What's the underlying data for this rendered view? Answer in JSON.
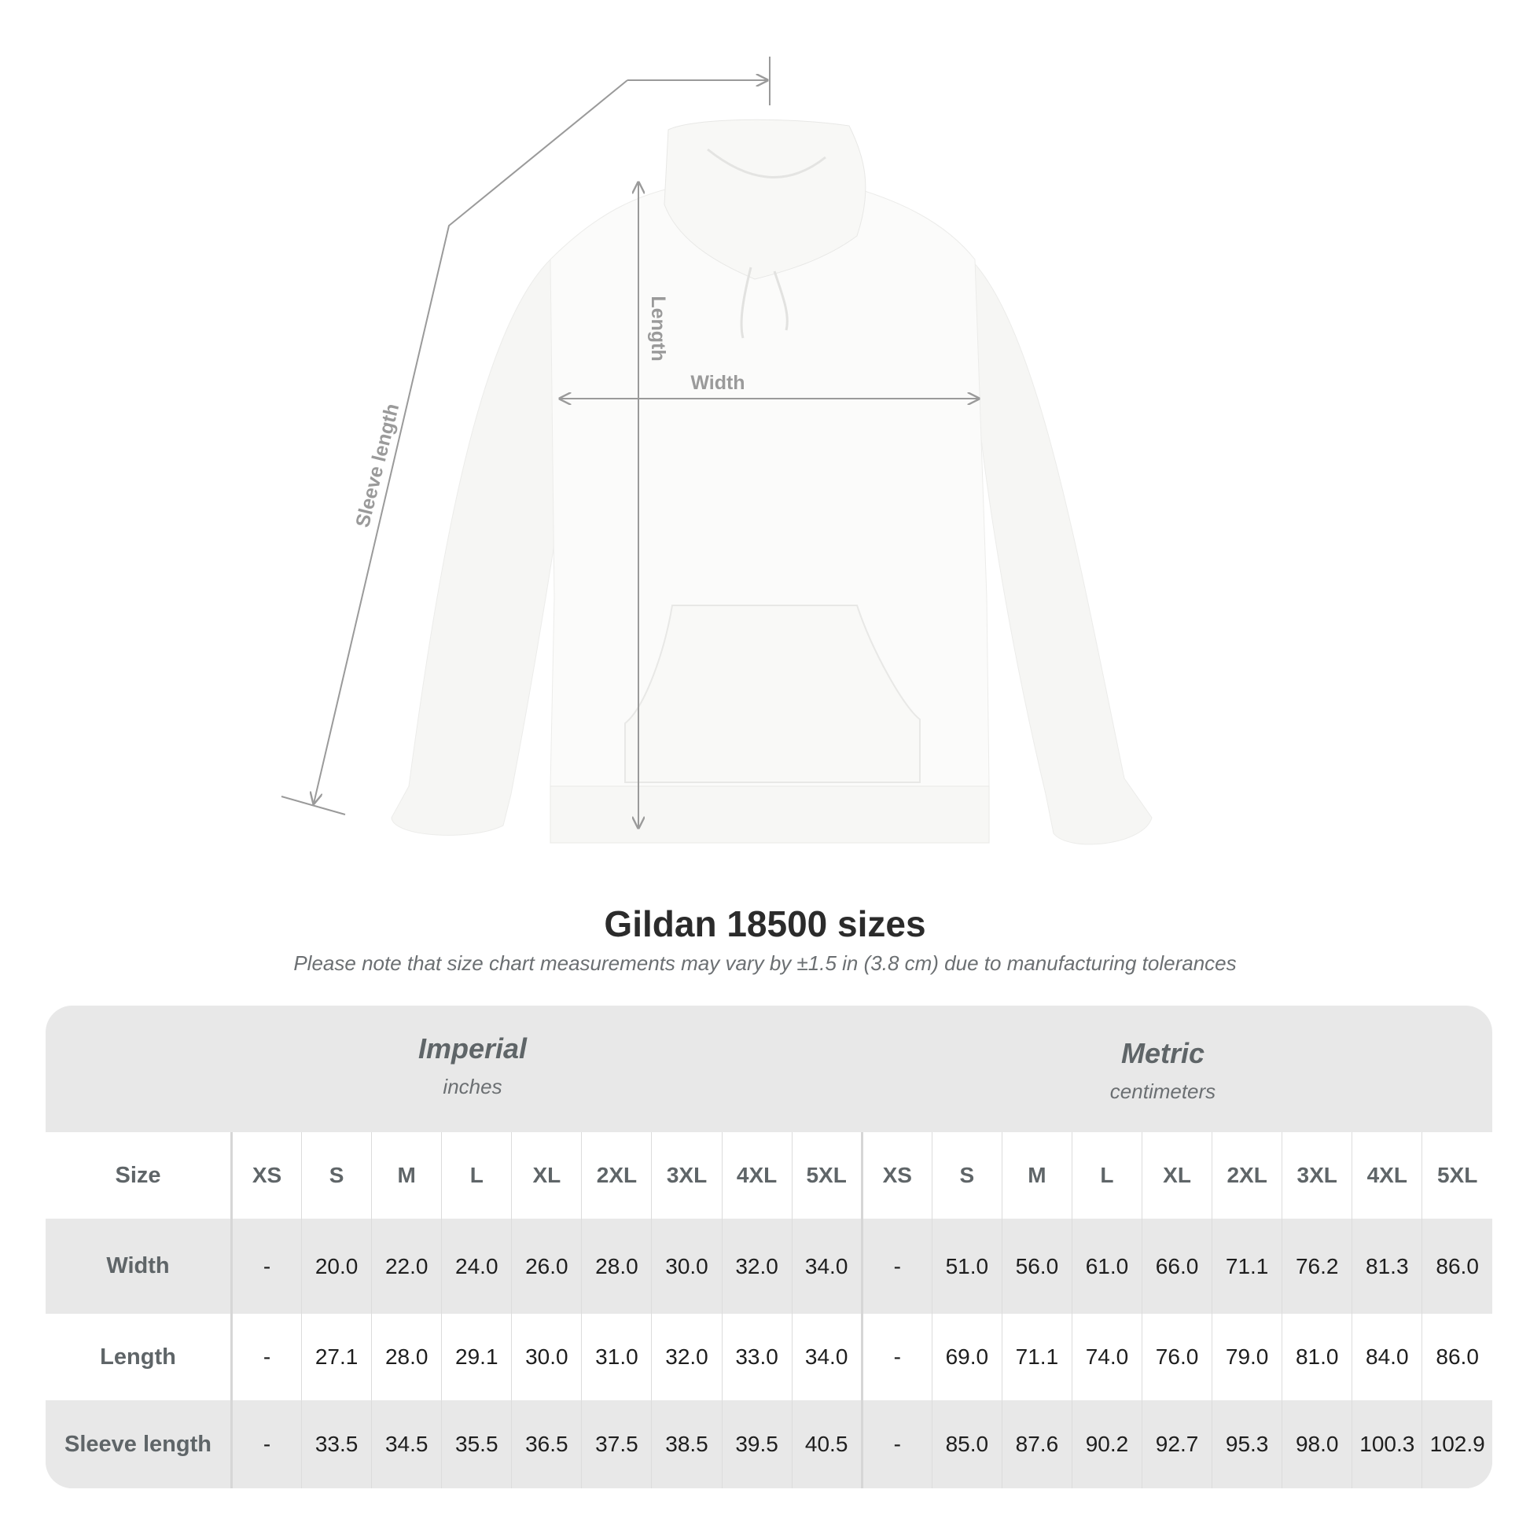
{
  "diagram": {
    "labels": {
      "sleeve": "Sleeve length",
      "length": "Length",
      "width": "Width"
    },
    "garment_color": "#fbfbfa",
    "line_color": "#9a9a9a"
  },
  "title": "Gildan 18500 sizes",
  "subtitle": "Please note that size chart measurements may vary by ±1.5 in (3.8 cm) due to manufacturing tolerances",
  "table": {
    "imperial": {
      "name": "Imperial",
      "unit": "inches"
    },
    "metric": {
      "name": "Metric",
      "unit": "centimeters"
    },
    "size_label": "Size",
    "sizes": [
      "XS",
      "S",
      "M",
      "L",
      "XL",
      "2XL",
      "3XL",
      "4XL",
      "5XL"
    ],
    "rows": [
      {
        "label": "Width",
        "imperial": [
          "-",
          "20.0",
          "22.0",
          "24.0",
          "26.0",
          "28.0",
          "30.0",
          "32.0",
          "34.0"
        ],
        "metric": [
          "-",
          "51.0",
          "56.0",
          "61.0",
          "66.0",
          "71.1",
          "76.2",
          "81.3",
          "86.0"
        ]
      },
      {
        "label": "Length",
        "imperial": [
          "-",
          "27.1",
          "28.0",
          "29.1",
          "30.0",
          "31.0",
          "32.0",
          "33.0",
          "34.0"
        ],
        "metric": [
          "-",
          "69.0",
          "71.1",
          "74.0",
          "76.0",
          "79.0",
          "81.0",
          "84.0",
          "86.0"
        ]
      },
      {
        "label": "Sleeve length",
        "imperial": [
          "-",
          "33.5",
          "34.5",
          "35.5",
          "36.5",
          "37.5",
          "38.5",
          "39.5",
          "40.5"
        ],
        "metric": [
          "-",
          "85.0",
          "87.6",
          "90.2",
          "92.7",
          "95.3",
          "98.0",
          "100.3",
          "102.9"
        ]
      }
    ]
  }
}
